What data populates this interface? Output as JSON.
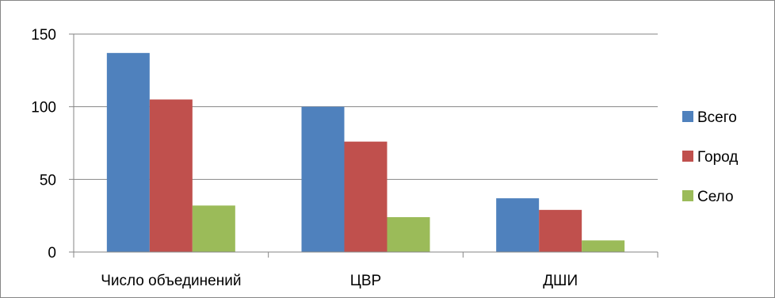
{
  "chart_data": {
    "type": "bar",
    "title": "",
    "xlabel": "",
    "ylabel": "",
    "categories": [
      "Число объединений",
      "ЦВР",
      "ДШИ"
    ],
    "series": [
      {
        "name": "Всего",
        "color": "#4F81BD",
        "values": [
          137,
          100,
          37
        ]
      },
      {
        "name": "Город",
        "color": "#C0504D",
        "values": [
          105,
          76,
          29
        ]
      },
      {
        "name": "Село",
        "color": "#9BBB59",
        "values": [
          32,
          24,
          8
        ]
      }
    ],
    "ylim": [
      0,
      150
    ],
    "yticks": [
      "0",
      "50",
      "100",
      "150"
    ],
    "grid": true,
    "legend_position": "right"
  }
}
